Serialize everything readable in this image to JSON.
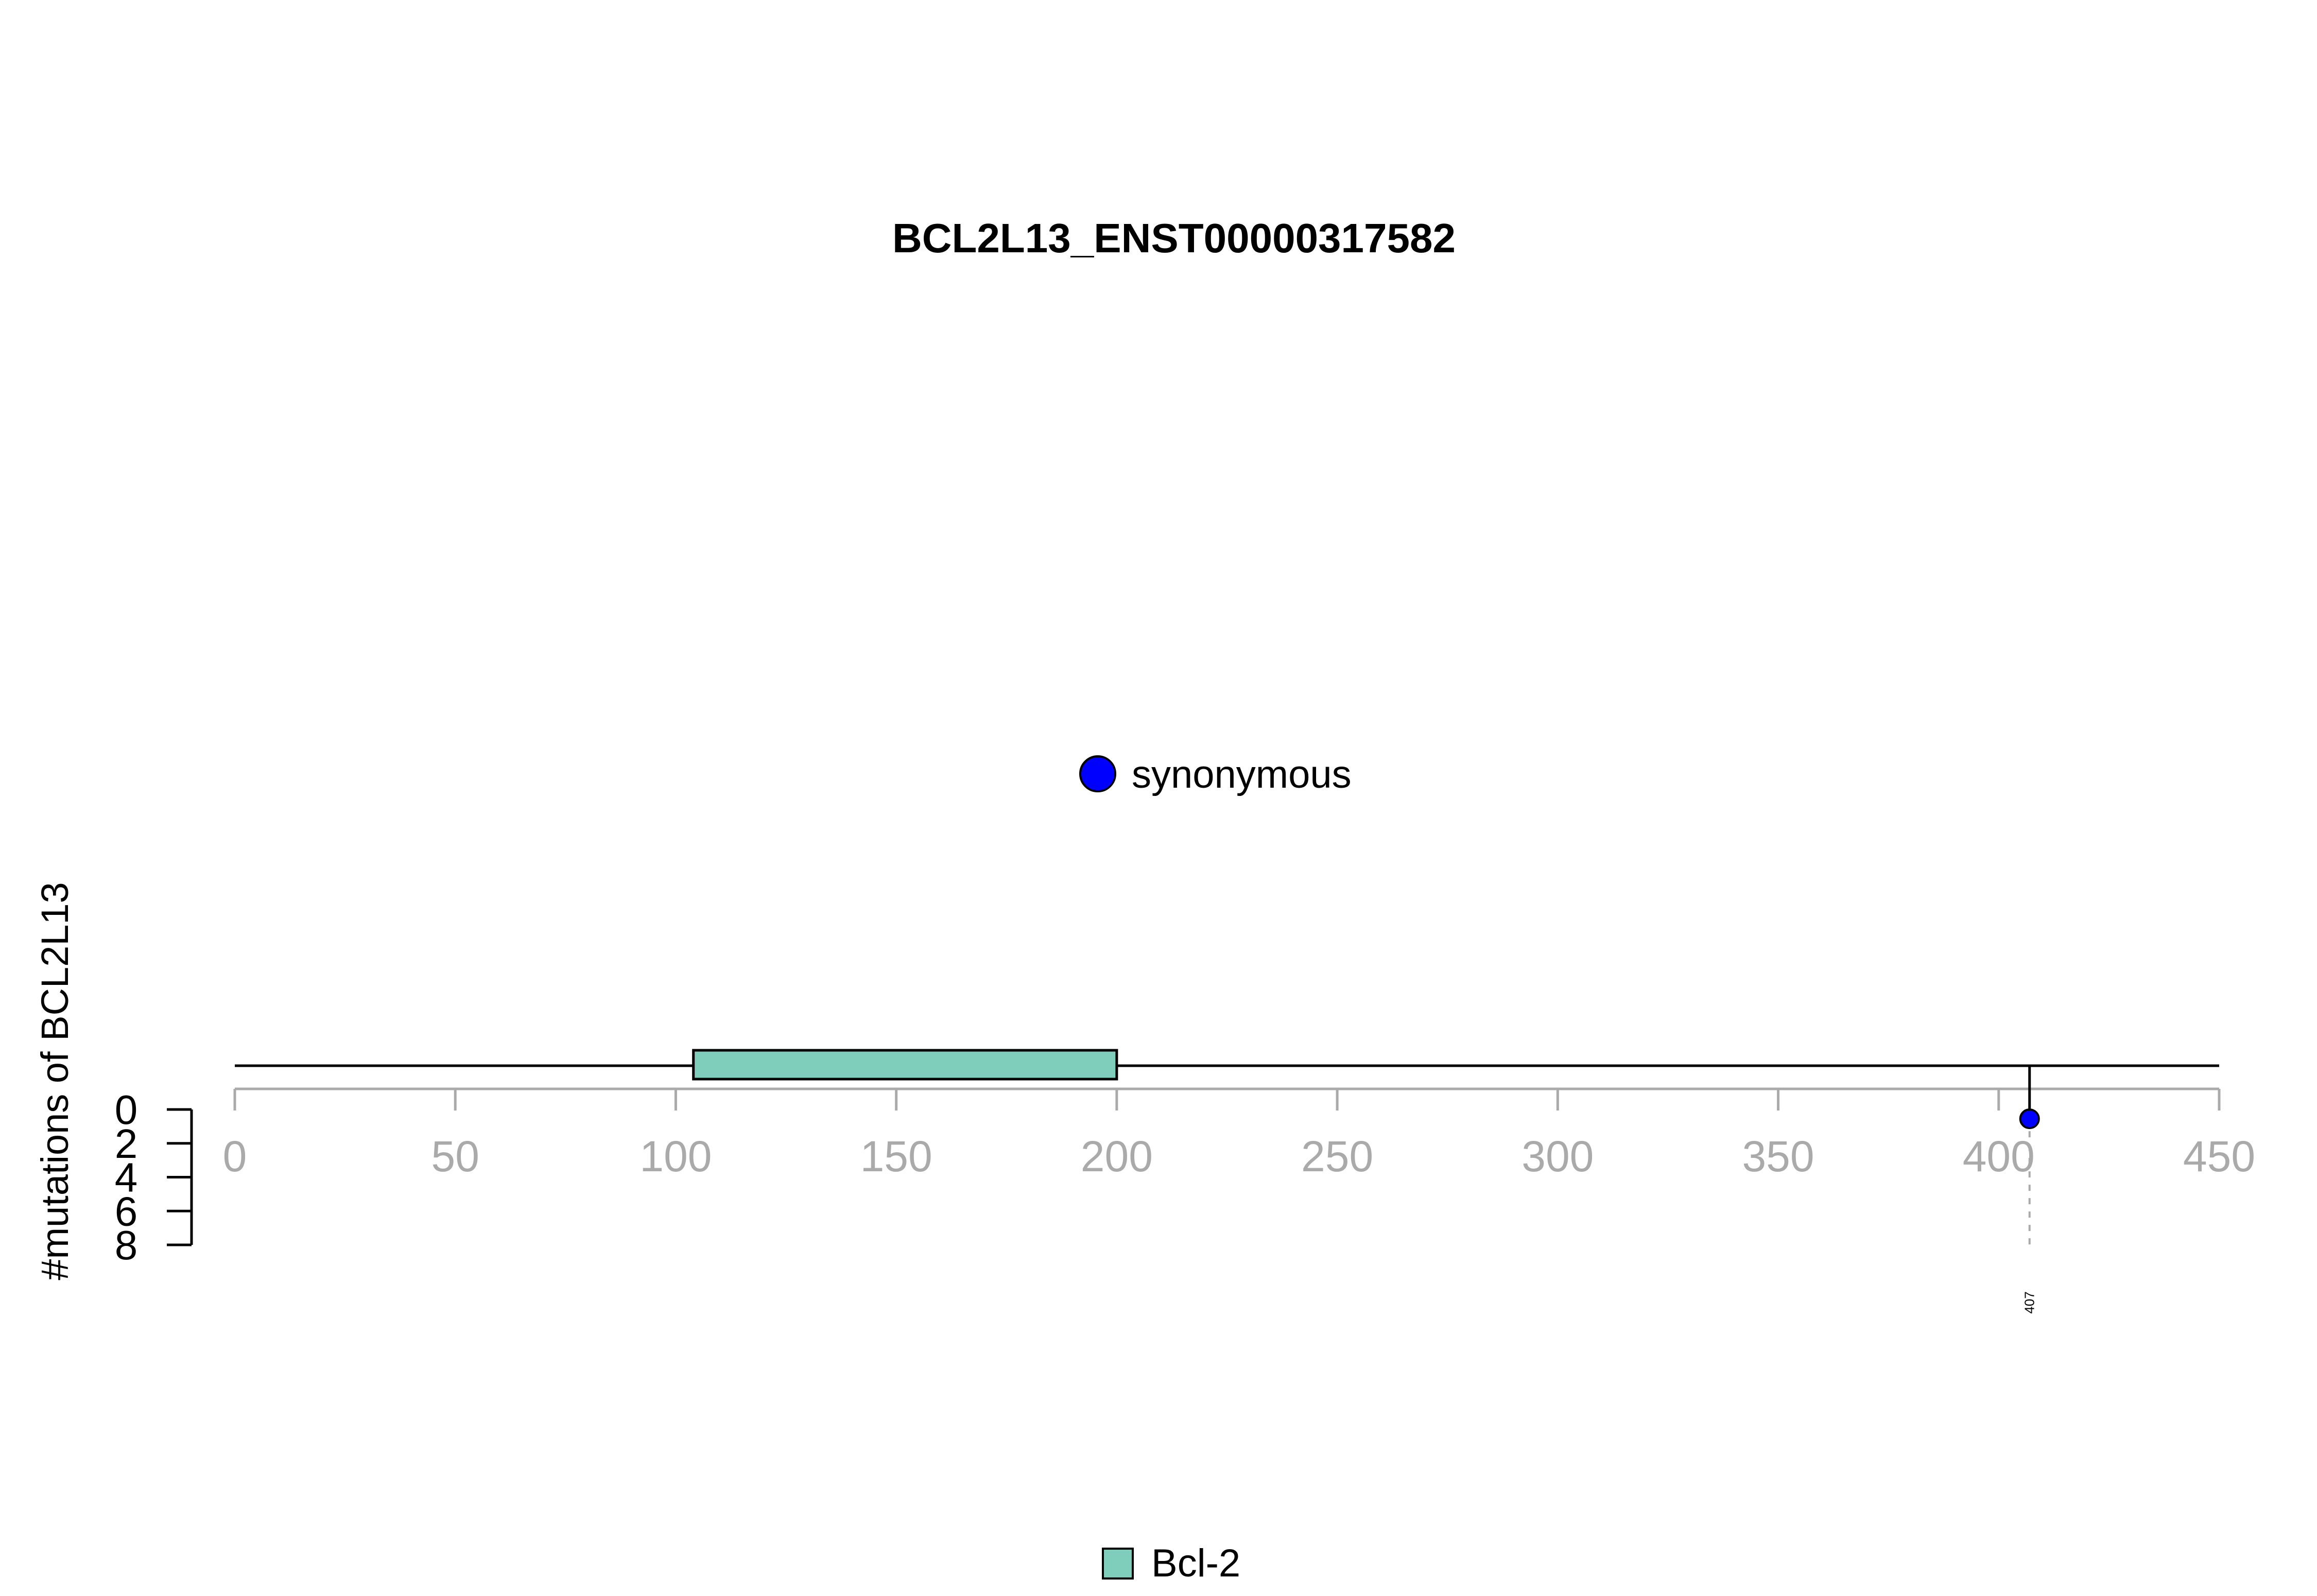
{
  "chart_data": {
    "type": "lollipop",
    "title": "BCL2L13_ENST00000317582",
    "ylabel": "#mutations of BCL2L13",
    "protein_length": 450,
    "xlim": [
      0,
      450
    ],
    "x_ticks": [
      0,
      50,
      100,
      150,
      200,
      250,
      300,
      350,
      400,
      450
    ],
    "ylim": [
      0,
      8
    ],
    "y_ticks": [
      0,
      2,
      4,
      6,
      8
    ],
    "domains": [
      {
        "name": "Bcl-2",
        "start": 104,
        "end": 200,
        "color": "#7FCDBB"
      }
    ],
    "mutations": [
      {
        "position": 407,
        "count": 1,
        "type": "synonymous",
        "label": "407"
      }
    ],
    "mutation_legend": [
      {
        "label": "synonymous",
        "color": "#0000FF"
      }
    ],
    "domain_legend": [
      {
        "label": "Bcl-2",
        "color": "#7FCDBB"
      }
    ],
    "colors": {
      "axis": "#AAAAAA",
      "backbone": "#000000",
      "synonymous": "#0000FF",
      "domain": "#7FCDBB"
    }
  }
}
